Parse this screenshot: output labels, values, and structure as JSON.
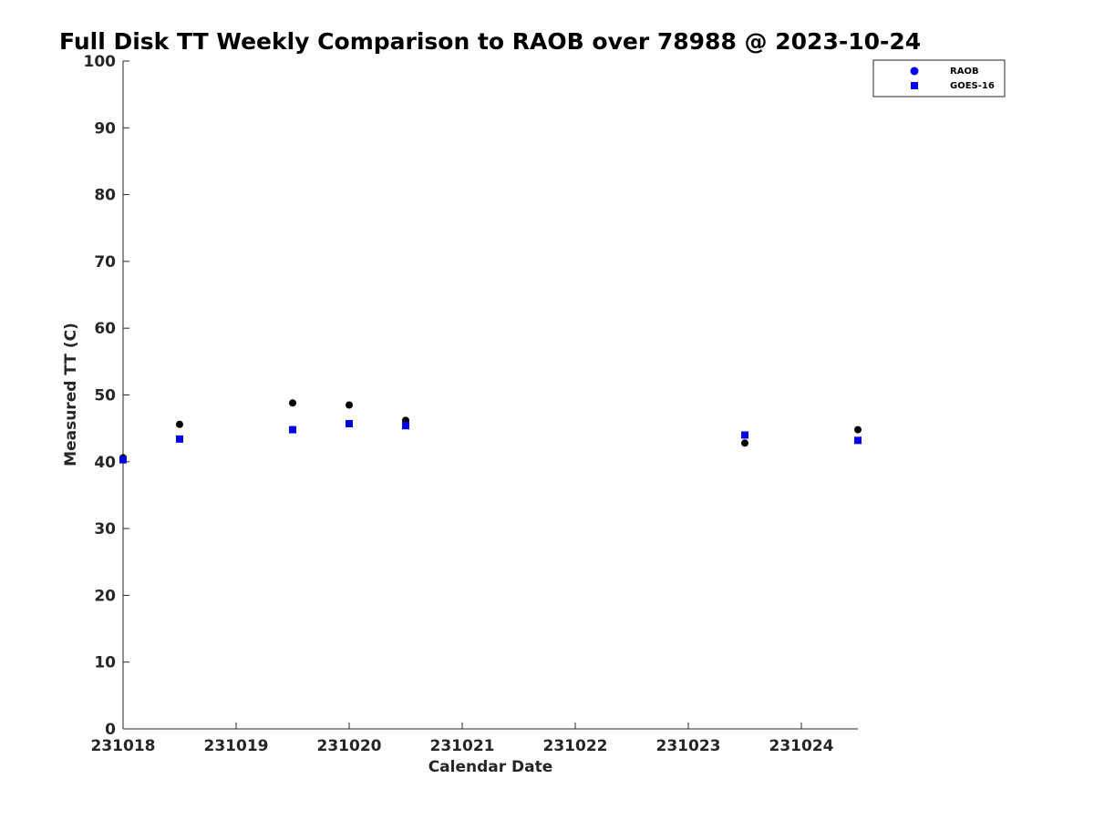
{
  "chart_data": {
    "type": "scatter",
    "title": "Full Disk TT Weekly Comparison to RAOB over 78988 @ 2023-10-24",
    "xlabel": "Calendar Date",
    "ylabel": "Measured TT (C)",
    "xlim": [
      "2023-10-18",
      "2023-10-24 12:00"
    ],
    "ylim": [
      0,
      100
    ],
    "x_ticks": [
      {
        "x": "2023-10-18",
        "label": "231018"
      },
      {
        "x": "2023-10-19",
        "label": "231019"
      },
      {
        "x": "2023-10-20",
        "label": "231020"
      },
      {
        "x": "2023-10-21",
        "label": "231021"
      },
      {
        "x": "2023-10-22",
        "label": "231022"
      },
      {
        "x": "2023-10-23",
        "label": "231023"
      },
      {
        "x": "2023-10-24",
        "label": "231024"
      }
    ],
    "y_ticks": [
      0,
      10,
      20,
      30,
      40,
      50,
      60,
      70,
      80,
      90,
      100
    ],
    "grid": false,
    "legend_position": "top-right",
    "series": [
      {
        "name": "RAOB",
        "marker": "circle",
        "color": "#000000",
        "legend_color": "#0000ee",
        "points": [
          {
            "x": "2023-10-18 00:00",
            "y": 40.6
          },
          {
            "x": "2023-10-18 12:00",
            "y": 45.6
          },
          {
            "x": "2023-10-19 12:00",
            "y": 48.8
          },
          {
            "x": "2023-10-20 00:00",
            "y": 48.5
          },
          {
            "x": "2023-10-20 12:00",
            "y": 46.2
          },
          {
            "x": "2023-10-23 12:00",
            "y": 42.8
          },
          {
            "x": "2023-10-24 12:00",
            "y": 44.8
          }
        ]
      },
      {
        "name": "GOES-16",
        "marker": "square",
        "color": "#0000ee",
        "legend_color": "#0000ee",
        "points": [
          {
            "x": "2023-10-18 00:00",
            "y": 40.3
          },
          {
            "x": "2023-10-18 12:00",
            "y": 43.4
          },
          {
            "x": "2023-10-19 12:00",
            "y": 44.8
          },
          {
            "x": "2023-10-20 00:00",
            "y": 45.7
          },
          {
            "x": "2023-10-20 12:00",
            "y": 45.4
          },
          {
            "x": "2023-10-23 12:00",
            "y": 44.0
          },
          {
            "x": "2023-10-24 12:00",
            "y": 43.2
          }
        ]
      }
    ]
  }
}
